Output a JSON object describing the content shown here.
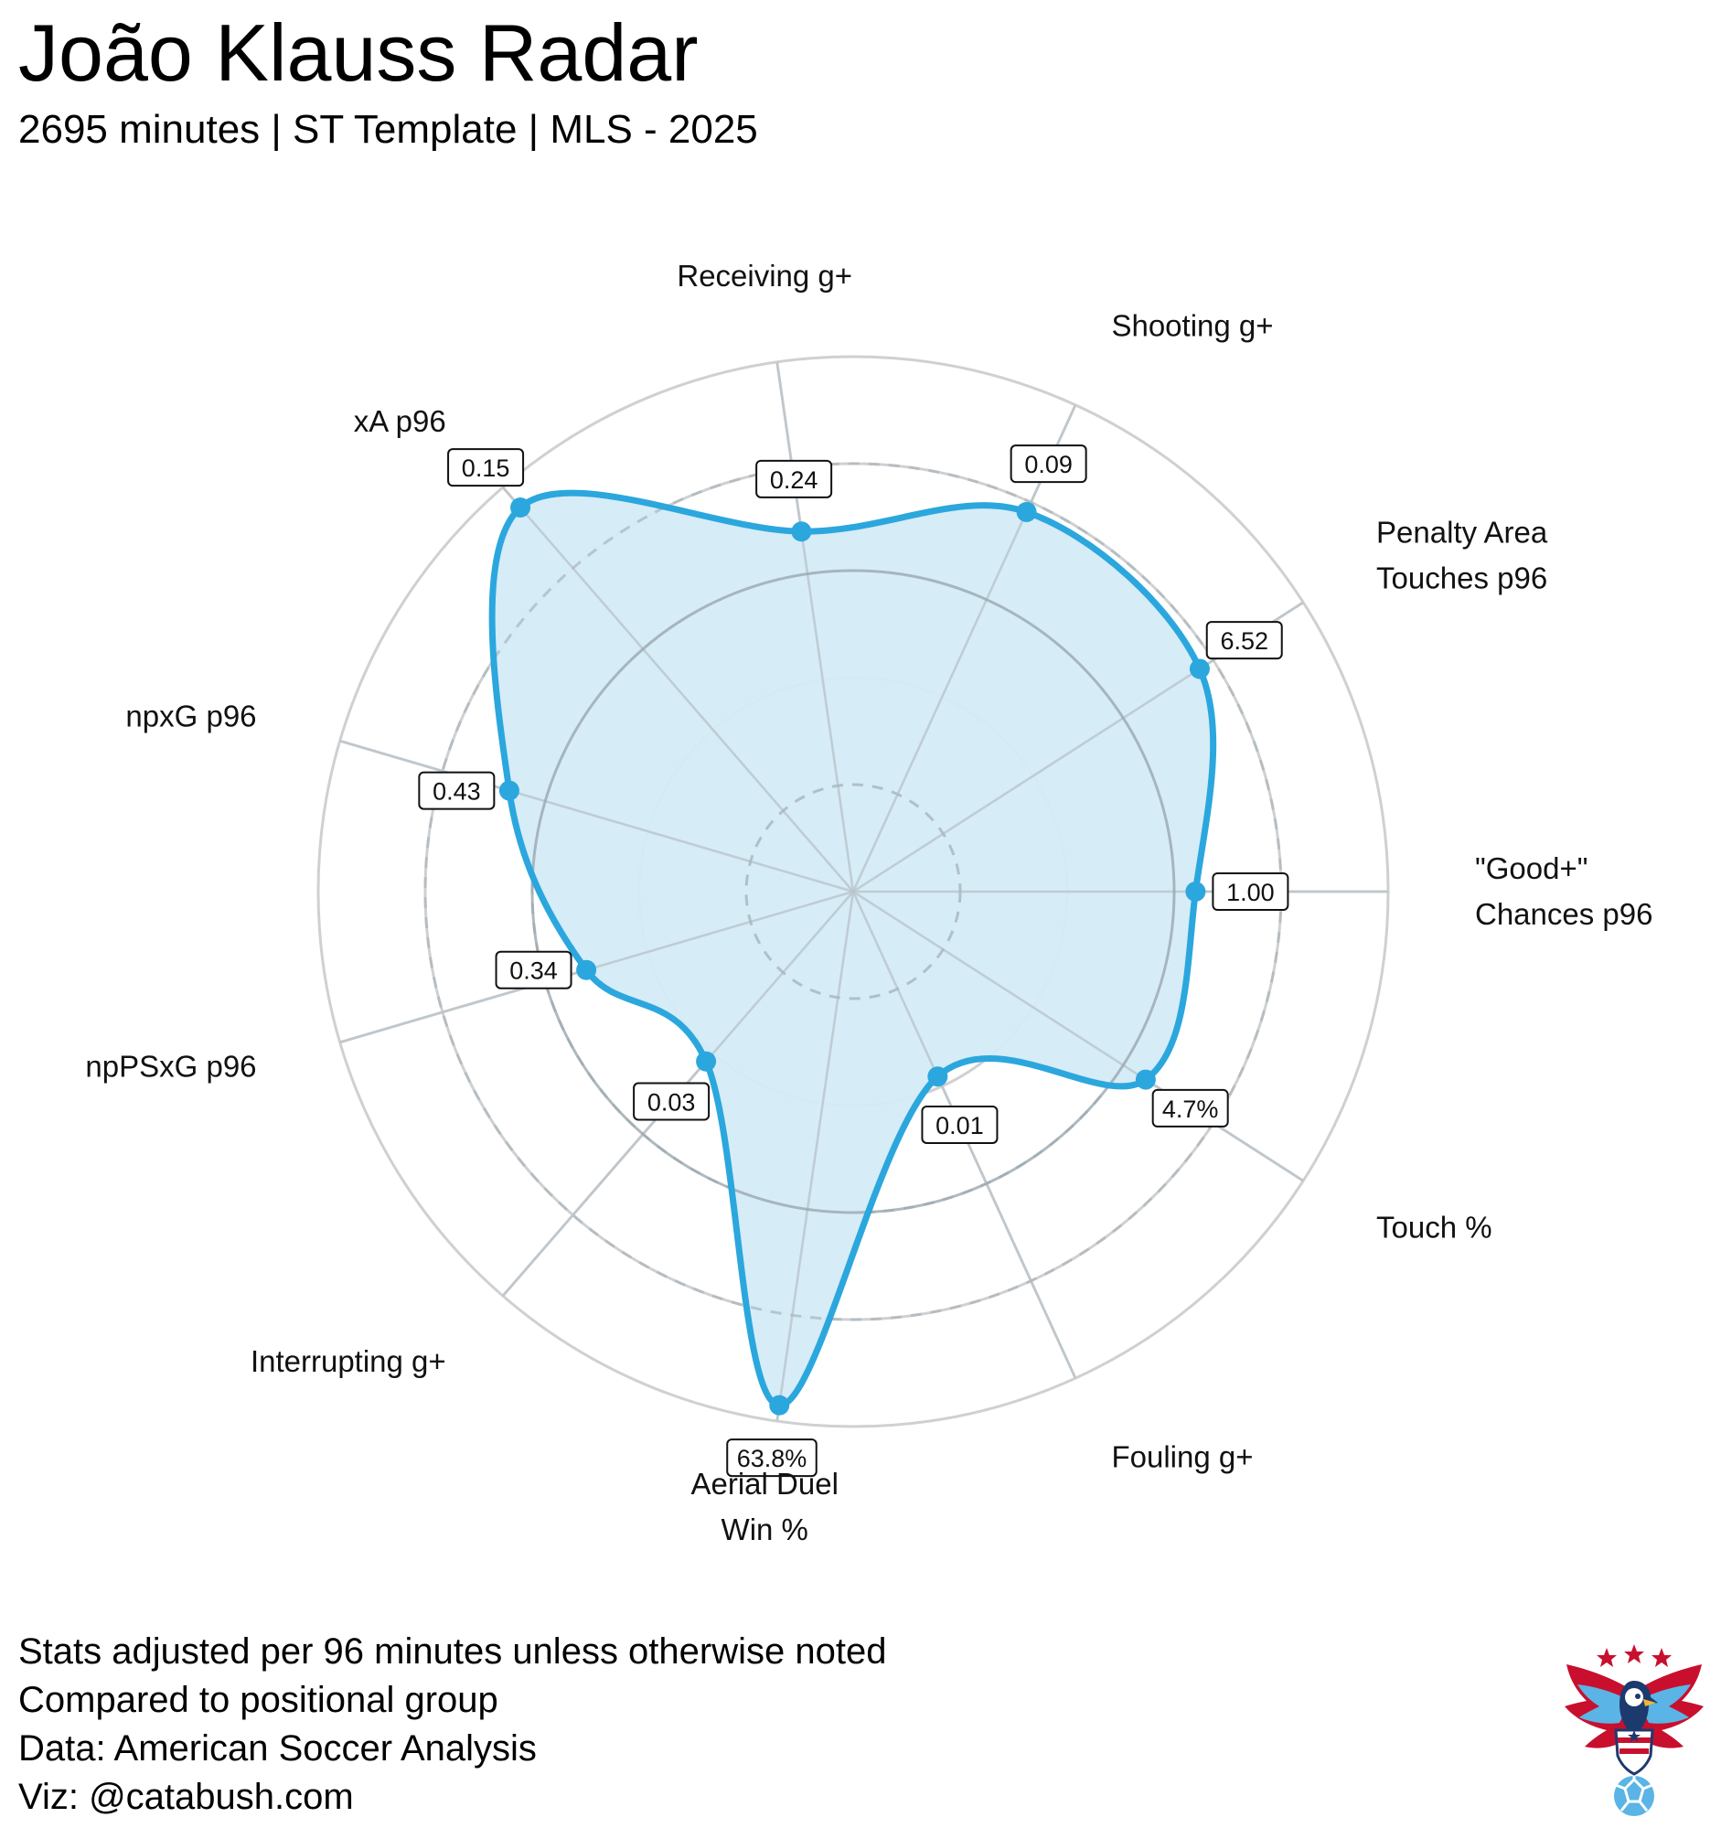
{
  "header": {
    "title": "João Klauss Radar",
    "subtitle": "2695 minutes | ST Template | MLS - 2025"
  },
  "footer": {
    "notes": [
      "Stats adjusted per 96 minutes unless otherwise noted",
      "Compared to positional group",
      "Data: American Soccer Analysis",
      "Viz: @catabush.com"
    ]
  },
  "logo": {
    "icon": "eagle-soccer-ball-icon",
    "colors": {
      "red": "#c8102e",
      "blue": "#5ab4e5",
      "navy": "#1d3a6e"
    }
  },
  "colors": {
    "accent": "#2ba7de",
    "fill": "#d4ebf7",
    "ring_solid": "#d0d0d0",
    "ring_dashed": "#c8c8c8",
    "spoke": "#d0d0d0",
    "subtitle": "#2ba7de"
  },
  "chart_data": {
    "type": "radar",
    "scale": "percentile",
    "range": [
      0,
      100
    ],
    "rings": [
      20,
      40,
      60,
      80,
      100
    ],
    "grid": true,
    "axes": [
      {
        "label": [
          "\"Good+\"",
          "Chances p96"
        ],
        "value_label": "1.00",
        "percentile": 64
      },
      {
        "label": [
          "Penalty Area",
          "Touches p96"
        ],
        "value_label": "6.52",
        "percentile": 77
      },
      {
        "label": [
          "Shooting g+"
        ],
        "value_label": "0.09",
        "percentile": 78
      },
      {
        "label": [
          "Receiving g+"
        ],
        "value_label": "0.24",
        "percentile": 68
      },
      {
        "label": [
          "xA p96"
        ],
        "value_label": "0.15",
        "percentile": 95
      },
      {
        "label": [
          "npxG p96"
        ],
        "value_label": "0.43",
        "percentile": 67
      },
      {
        "label": [
          "npPSxG p96"
        ],
        "value_label": "0.34",
        "percentile": 52
      },
      {
        "label": [
          "Interrupting g+"
        ],
        "value_label": "0.03",
        "percentile": 42
      },
      {
        "label": [
          "Aerial Duel",
          "Win %"
        ],
        "value_label": "63.8%",
        "percentile": 97
      },
      {
        "label": [
          "Fouling g+"
        ],
        "value_label": "0.01",
        "percentile": 38
      },
      {
        "label": [
          "Touch %"
        ],
        "value_label": "4.7%",
        "percentile": 65
      }
    ]
  }
}
